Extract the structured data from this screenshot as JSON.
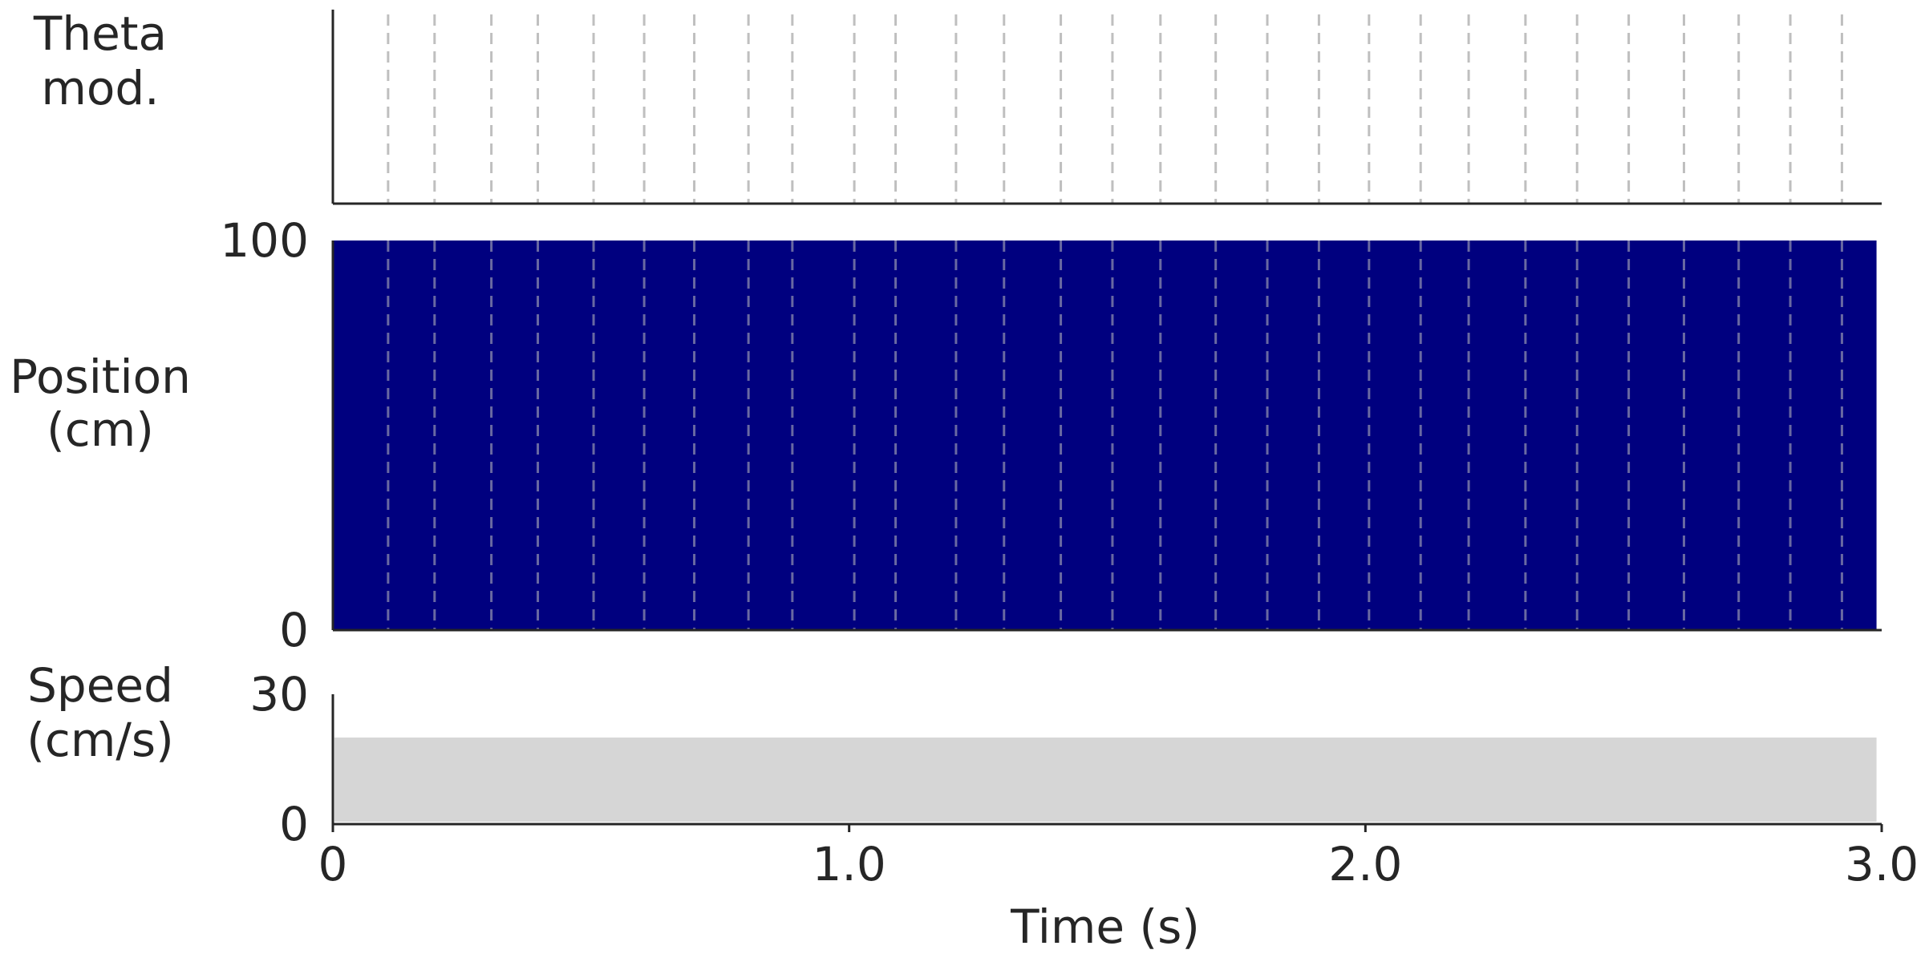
{
  "chart_data": [
    {
      "panel": "theta",
      "type": "line",
      "ylabel_lines": [
        "Theta",
        "mod."
      ],
      "xlim": [
        0,
        3.0
      ],
      "theta_cycle_marks_s": [
        0.107,
        0.197,
        0.307,
        0.397,
        0.505,
        0.603,
        0.7,
        0.805,
        0.89,
        1.01,
        1.09,
        1.207,
        1.3,
        1.41,
        1.51,
        1.603,
        1.71,
        1.81,
        1.91,
        2.007,
        2.107,
        2.2,
        2.31,
        2.41,
        2.51,
        2.617,
        2.723,
        2.823,
        2.923
      ],
      "grid": false
    },
    {
      "panel": "position",
      "type": "area",
      "ylabel_lines": [
        "Position",
        "(cm)"
      ],
      "xlim": [
        0,
        3.0
      ],
      "ylim": [
        0,
        100
      ],
      "yticks": [
        "0",
        "100"
      ],
      "x": [
        0,
        2.99
      ],
      "y_low": [
        0,
        0
      ],
      "y_high": [
        100,
        100
      ],
      "fill_color": "#00007f",
      "grid": false
    },
    {
      "panel": "speed",
      "type": "area",
      "ylabel_lines": [
        "Speed",
        "(cm/s)"
      ],
      "xlim": [
        0,
        3.0
      ],
      "ylim": [
        0,
        30
      ],
      "yticks": [
        "0",
        "30"
      ],
      "x": [
        0,
        2.99
      ],
      "values": [
        20,
        20
      ],
      "fill_color": "#d6d6d6",
      "xticks": [
        "0",
        "1.0",
        "2.0",
        "3.0"
      ],
      "xtick_values": [
        0,
        1.0,
        2.0,
        3.0
      ],
      "xlabel": "Time (s)",
      "grid": false
    }
  ],
  "colors": {
    "axis": "#262626",
    "theta_line": "#bfbfbf",
    "position_fill": "#00007f",
    "speed_fill": "#d6d6d6"
  }
}
